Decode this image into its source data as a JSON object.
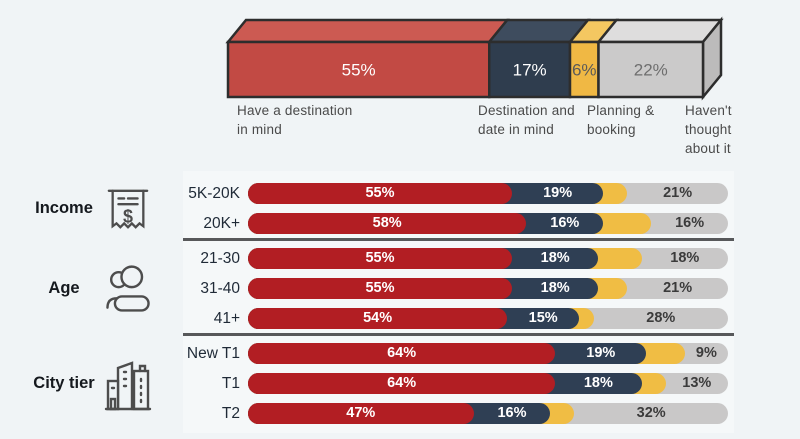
{
  "colors": {
    "background": "#f0f4f6",
    "panel": "#f5f8f9",
    "outline": "#2d2d2d",
    "divider": "#57585a",
    "category_label_text": "#4a4a4a",
    "row_label_text": "#1f2a37",
    "overall_segments": [
      {
        "front": "#c24a44",
        "top": "#cc5a52",
        "text": "#ffffff"
      },
      {
        "front": "#2f3d4e",
        "top": "#3e4c5e",
        "text": "#ffffff"
      },
      {
        "front": "#f0b844",
        "top": "#f4c761",
        "text": "#5a5a5a"
      },
      {
        "front": "#cbcaca",
        "top": "#dedddd",
        "side": "#bcbbbb",
        "text": "#6e6e6e"
      }
    ],
    "row_segments": [
      "#b21e23",
      "#2f3f54",
      "#f0bd44",
      "#c9c8c8"
    ],
    "row_text_on_dark": "#ffffff",
    "row_text_on_gray": "#3b3b3b"
  },
  "chart_data": {
    "type": "bar",
    "stacked": true,
    "orientation": "horizontal",
    "series_labels": [
      "Have a destination\nin mind",
      "Destination and date in mind",
      "Planning & booking",
      "Haven't thought about it"
    ],
    "overall": {
      "values": [
        55,
        17,
        6,
        22
      ],
      "labels": [
        "55%",
        "17%",
        "6%",
        "22%"
      ]
    },
    "planning_segment_unlabeled_in_rows": true,
    "groups": [
      {
        "name": "Income",
        "icon": "receipt-icon",
        "rows": [
          {
            "label": "5K-20K",
            "values": [
              55,
              19,
              5,
              21
            ],
            "shown_labels": [
              "55%",
              "19%",
              "",
              "21%"
            ]
          },
          {
            "label": "20K+",
            "values": [
              58,
              16,
              10,
              16
            ],
            "shown_labels": [
              "58%",
              "16%",
              "",
              "16%"
            ]
          }
        ]
      },
      {
        "name": "Age",
        "icon": "people-icon",
        "rows": [
          {
            "label": "21-30",
            "values": [
              55,
              18,
              9,
              18
            ],
            "shown_labels": [
              "55%",
              "18%",
              "",
              "18%"
            ]
          },
          {
            "label": "31-40",
            "values": [
              55,
              18,
              6,
              21
            ],
            "shown_labels": [
              "55%",
              "18%",
              "",
              "21%"
            ]
          },
          {
            "label": "41+",
            "values": [
              54,
              15,
              3,
              28
            ],
            "shown_labels": [
              "54%",
              "15%",
              "",
              "28%"
            ]
          }
        ]
      },
      {
        "name": "City tier",
        "icon": "buildings-icon",
        "rows": [
          {
            "label": "New T1",
            "values": [
              64,
              19,
              8,
              9
            ],
            "shown_labels": [
              "64%",
              "19%",
              "",
              "9%"
            ]
          },
          {
            "label": "T1",
            "values": [
              64,
              18,
              5,
              13
            ],
            "shown_labels": [
              "64%",
              "18%",
              "",
              "13%"
            ]
          },
          {
            "label": "T2",
            "values": [
              47,
              16,
              5,
              32
            ],
            "shown_labels": [
              "47%",
              "16%",
              "",
              "32%"
            ]
          }
        ]
      }
    ]
  }
}
